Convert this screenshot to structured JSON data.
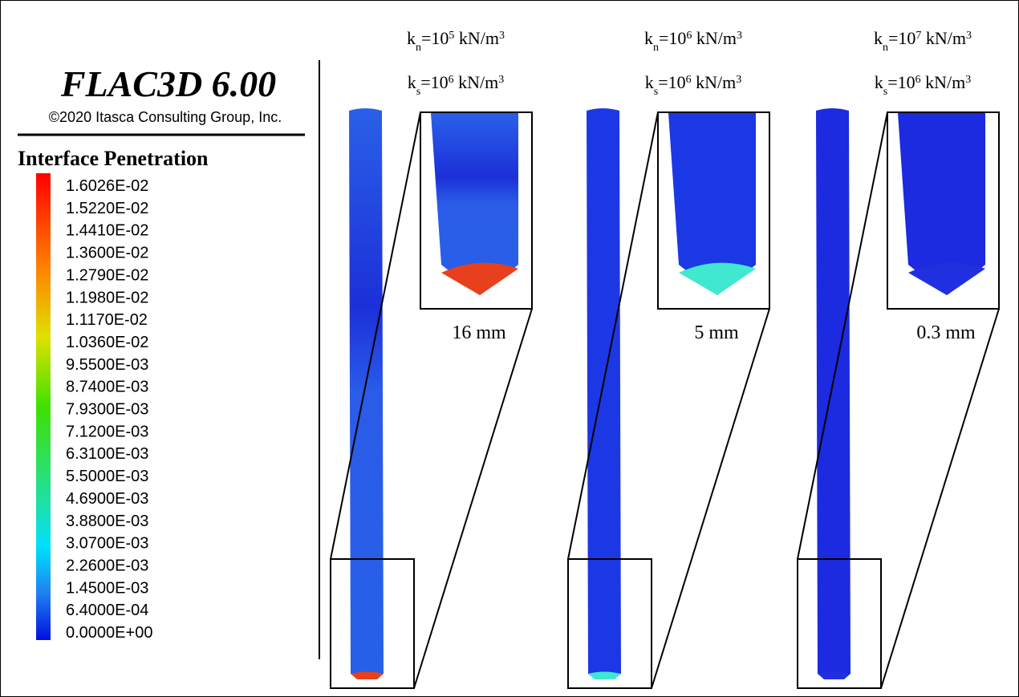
{
  "header": {
    "title": "FLAC3D 6.00",
    "copyright": "©2020 Itasca Consulting Group, Inc."
  },
  "legend": {
    "title": "Interface Penetration",
    "labels": [
      "1.6026E-02",
      "1.5220E-02",
      "1.4410E-02",
      "1.3600E-02",
      "1.2790E-02",
      "1.1980E-02",
      "1.1170E-02",
      "1.0360E-02",
      "9.5500E-03",
      "8.7400E-03",
      "7.9300E-03",
      "7.1200E-03",
      "6.3100E-03",
      "5.5000E-03",
      "4.6900E-03",
      "3.8800E-03",
      "3.0700E-03",
      "2.2600E-03",
      "1.4500E-03",
      "6.4000E-04",
      "0.0000E+00"
    ]
  },
  "panels": [
    {
      "kn": [
        "k",
        "n",
        "=10",
        "5",
        " kN/m",
        "3"
      ],
      "ks": [
        "k",
        "s",
        "=10",
        "6",
        " kN/m",
        "3"
      ],
      "penetration": "16 mm"
    },
    {
      "kn": [
        "k",
        "n",
        "=10",
        "6",
        " kN/m",
        "3"
      ],
      "ks": [
        "k",
        "s",
        "=10",
        "6",
        " kN/m",
        "3"
      ],
      "penetration": "5 mm"
    },
    {
      "kn": [
        "k",
        "n",
        "=10",
        "7",
        " kN/m",
        "3"
      ],
      "ks": [
        "k",
        "s",
        "=10",
        "6",
        " kN/m",
        "3"
      ],
      "penetration": "0.3 mm"
    }
  ]
}
